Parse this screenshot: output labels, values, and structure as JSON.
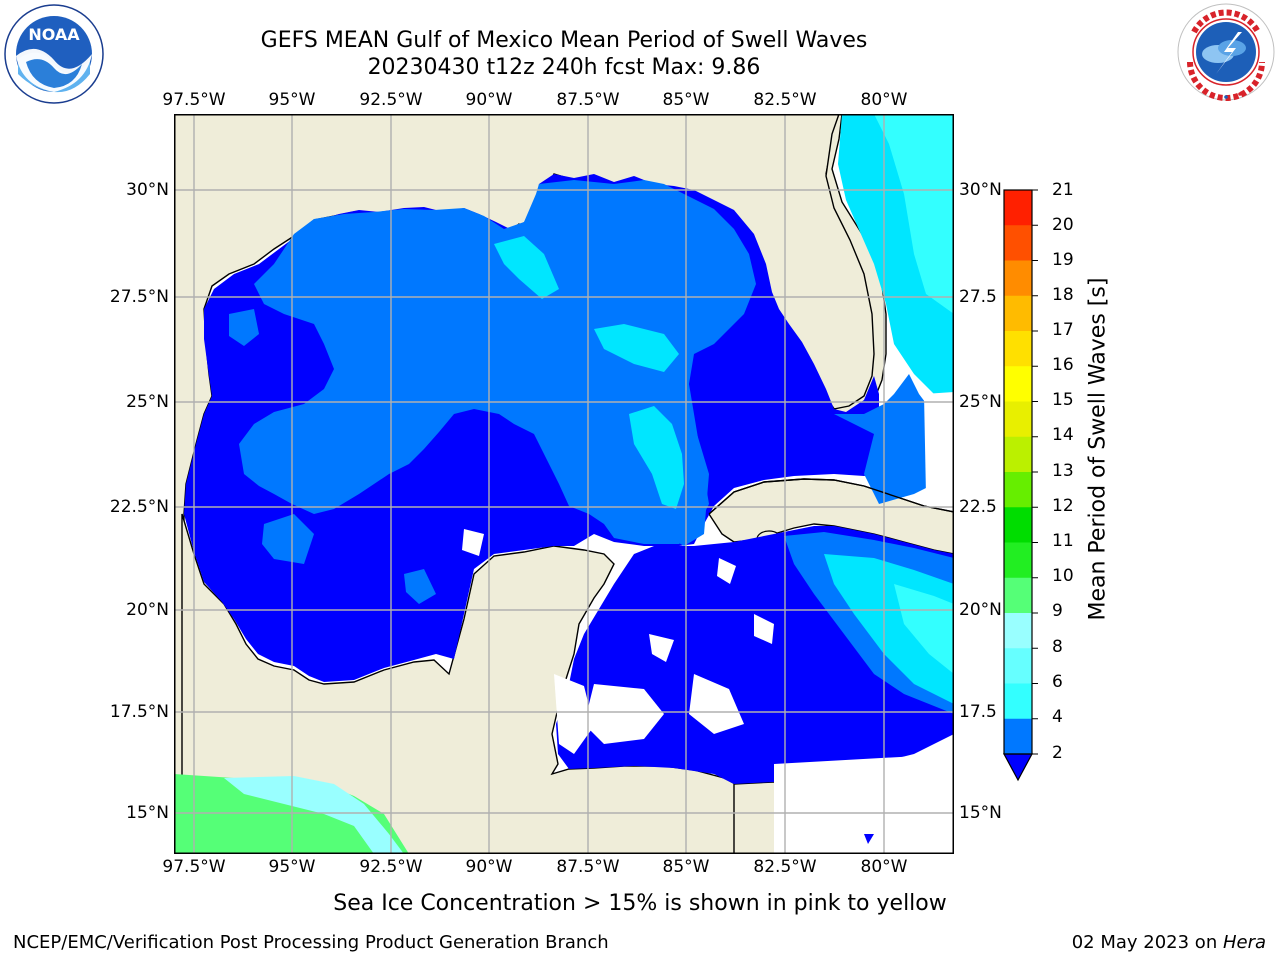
{
  "header": {
    "title_line1": "GEFS MEAN Gulf of Mexico Mean Period of Swell Waves",
    "title_line2": "20230430 t12z 240h fcst   Max: 9.86"
  },
  "logos": {
    "noaa": {
      "name": "noaa-logo",
      "text": "NOAA",
      "ring_text": "NATIONAL OCEANIC AND ATMOSPHERIC ADMINISTRATION · U.S. DEPARTMENT OF COMMERCE"
    },
    "nws": {
      "name": "nws-logo",
      "ring_text": "NATIONAL WEATHER SERVICE"
    }
  },
  "map": {
    "lon_ticks_top": [
      "97.5°W",
      "95°W",
      "92.5°W",
      "90°W",
      "87.5°W",
      "85°W",
      "82.5°W",
      "80°W"
    ],
    "lon_ticks_bottom": [
      "97.5°W",
      "95°W",
      "92.5°W",
      "90°W",
      "87.5°W",
      "85°W",
      "82.5°W",
      "80°W"
    ],
    "lat_ticks_left": [
      "30°N",
      "27.5°N",
      "25°N",
      "22.5°N",
      "20°N",
      "17.5°N",
      "15°N"
    ],
    "lat_ticks_right": [
      "30°N",
      "27.5",
      "25°N",
      "22.5",
      "20°N",
      "17.5",
      "15°N"
    ],
    "lon_range": [
      -98,
      -78.2
    ],
    "lat_range": [
      14,
      31.9
    ],
    "colors": {
      "land": "#efedd9",
      "nodata": "#ffffff",
      "grid": "#b0b0b0"
    }
  },
  "colorbar": {
    "label": "Mean Period of Swell Waves [s]",
    "levels": [
      "2",
      "4",
      "6",
      "8",
      "9",
      "10",
      "11",
      "12",
      "13",
      "14",
      "15",
      "16",
      "17",
      "18",
      "19",
      "20",
      "21"
    ],
    "colors": [
      "#0078ff",
      "#00e6ff",
      "#33ffff",
      "#66ffff",
      "#99ffff",
      "#55ff77",
      "#22ee22",
      "#00dd00",
      "#66ee00",
      "#bbf000",
      "#e8ef00",
      "#ffff00",
      "#ffe000",
      "#ffbb00",
      "#ff8c00",
      "#ff5000",
      "#ff2000",
      "#ff0000"
    ],
    "under_color": "#0000ff"
  },
  "caption": "Sea Ice Concentration > 15% is shown in pink to yellow",
  "footer": {
    "left": "NCEP/EMC/Verification Post Processing Product Generation Branch",
    "right_prefix": "02 May 2023 on ",
    "right_host": "Hera"
  }
}
